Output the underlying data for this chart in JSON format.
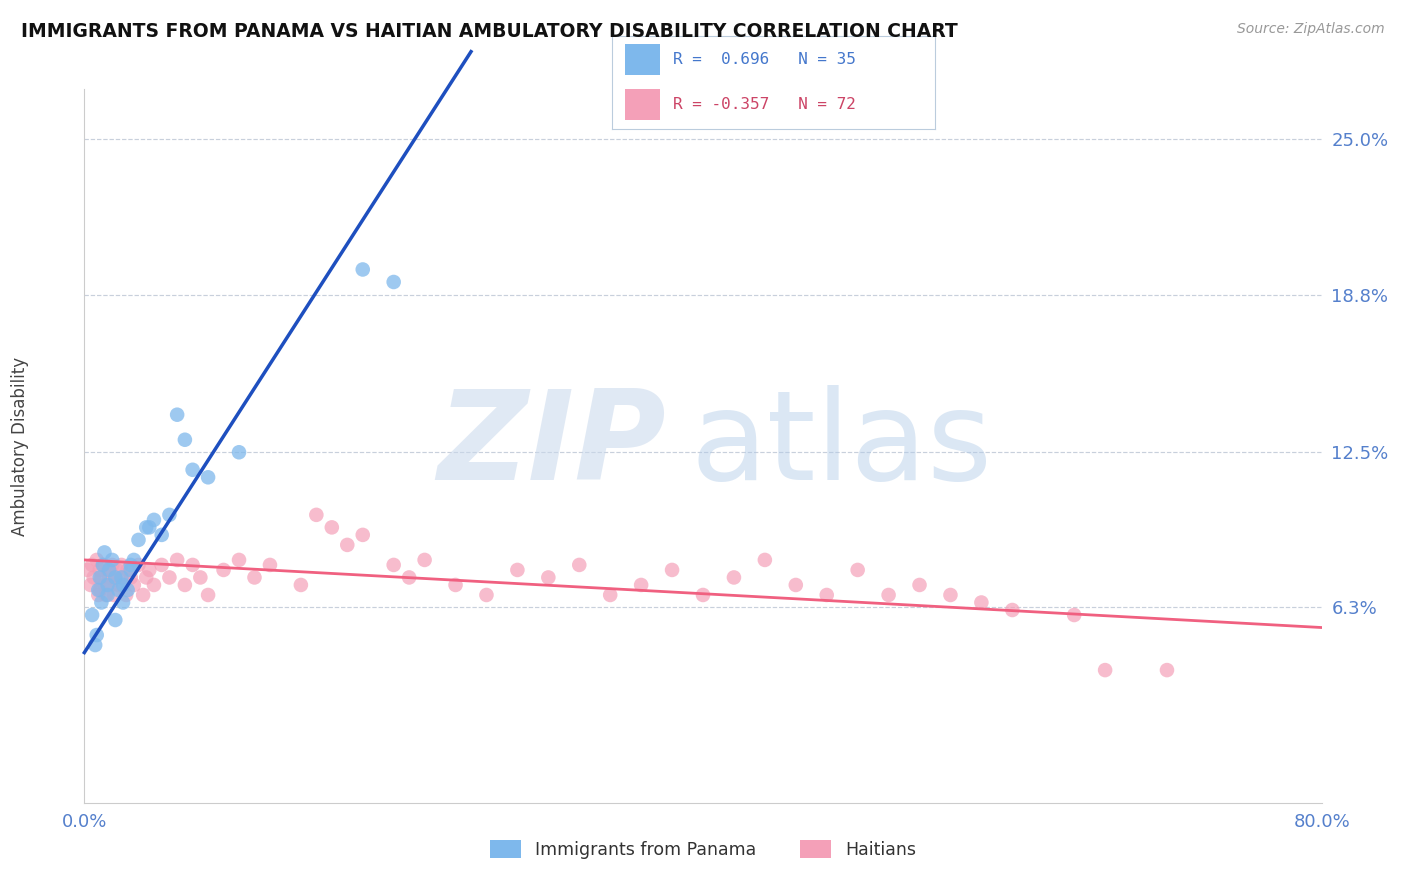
{
  "title": "IMMIGRANTS FROM PANAMA VS HAITIAN AMBULATORY DISABILITY CORRELATION CHART",
  "source": "Source: ZipAtlas.com",
  "ylabel": "Ambulatory Disability",
  "yticks": [
    0.0,
    0.063,
    0.125,
    0.188,
    0.25
  ],
  "ytick_labels": [
    "",
    "6.3%",
    "12.5%",
    "18.8%",
    "25.0%"
  ],
  "xlim": [
    0.0,
    0.8
  ],
  "ylim": [
    -0.015,
    0.27
  ],
  "legend_label_blue": "Immigrants from Panama",
  "legend_label_pink": "Haitians",
  "blue_color": "#7EB8EC",
  "pink_color": "#F4A0B8",
  "line_blue": "#1E4FBF",
  "line_pink": "#F06080",
  "blue_scatter_x": [
    0.005,
    0.007,
    0.008,
    0.009,
    0.01,
    0.011,
    0.012,
    0.013,
    0.015,
    0.015,
    0.016,
    0.018,
    0.02,
    0.02,
    0.022,
    0.024,
    0.025,
    0.025,
    0.028,
    0.03,
    0.03,
    0.032,
    0.035,
    0.04,
    0.042,
    0.045,
    0.05,
    0.055,
    0.06,
    0.065,
    0.07,
    0.08,
    0.1,
    0.18,
    0.2
  ],
  "blue_scatter_y": [
    0.06,
    0.048,
    0.052,
    0.07,
    0.075,
    0.065,
    0.08,
    0.085,
    0.068,
    0.072,
    0.078,
    0.082,
    0.058,
    0.075,
    0.07,
    0.075,
    0.065,
    0.072,
    0.07,
    0.078,
    0.08,
    0.082,
    0.09,
    0.095,
    0.095,
    0.098,
    0.092,
    0.1,
    0.14,
    0.13,
    0.118,
    0.115,
    0.125,
    0.198,
    0.193
  ],
  "pink_scatter_x": [
    0.002,
    0.004,
    0.005,
    0.006,
    0.008,
    0.009,
    0.01,
    0.01,
    0.011,
    0.012,
    0.013,
    0.014,
    0.015,
    0.016,
    0.017,
    0.018,
    0.019,
    0.02,
    0.021,
    0.022,
    0.024,
    0.025,
    0.027,
    0.028,
    0.03,
    0.032,
    0.035,
    0.038,
    0.04,
    0.042,
    0.045,
    0.05,
    0.055,
    0.06,
    0.065,
    0.07,
    0.075,
    0.08,
    0.09,
    0.1,
    0.11,
    0.12,
    0.14,
    0.15,
    0.16,
    0.17,
    0.18,
    0.2,
    0.21,
    0.22,
    0.24,
    0.26,
    0.28,
    0.3,
    0.32,
    0.34,
    0.36,
    0.38,
    0.4,
    0.42,
    0.44,
    0.46,
    0.48,
    0.5,
    0.52,
    0.54,
    0.56,
    0.58,
    0.6,
    0.64,
    0.66,
    0.7
  ],
  "pink_scatter_y": [
    0.078,
    0.072,
    0.08,
    0.075,
    0.082,
    0.068,
    0.078,
    0.07,
    0.075,
    0.08,
    0.072,
    0.068,
    0.078,
    0.075,
    0.072,
    0.08,
    0.068,
    0.075,
    0.078,
    0.072,
    0.08,
    0.075,
    0.068,
    0.078,
    0.075,
    0.072,
    0.08,
    0.068,
    0.075,
    0.078,
    0.072,
    0.08,
    0.075,
    0.082,
    0.072,
    0.08,
    0.075,
    0.068,
    0.078,
    0.082,
    0.075,
    0.08,
    0.072,
    0.1,
    0.095,
    0.088,
    0.092,
    0.08,
    0.075,
    0.082,
    0.072,
    0.068,
    0.078,
    0.075,
    0.08,
    0.068,
    0.072,
    0.078,
    0.068,
    0.075,
    0.082,
    0.072,
    0.068,
    0.078,
    0.068,
    0.072,
    0.068,
    0.065,
    0.062,
    0.06,
    0.038,
    0.038
  ],
  "blue_line_x": [
    0.0,
    0.25
  ],
  "blue_line_y": [
    0.045,
    0.285
  ],
  "pink_line_x": [
    0.0,
    0.8
  ],
  "pink_line_y": [
    0.082,
    0.055
  ]
}
